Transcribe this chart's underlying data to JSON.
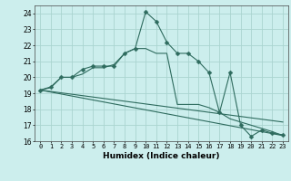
{
  "title": "",
  "xlabel": "Humidex (Indice chaleur)",
  "bg_color": "#cceeed",
  "grid_color": "#aad4d0",
  "line_color": "#2e6b5e",
  "xlim": [
    -0.5,
    23.5
  ],
  "ylim": [
    16,
    24.5
  ],
  "yticks": [
    16,
    17,
    18,
    19,
    20,
    21,
    22,
    23,
    24
  ],
  "xticks": [
    0,
    1,
    2,
    3,
    4,
    5,
    6,
    7,
    8,
    9,
    10,
    11,
    12,
    13,
    14,
    15,
    16,
    17,
    18,
    19,
    20,
    21,
    22,
    23
  ],
  "series": [
    {
      "x": [
        0,
        1,
        2,
        3,
        4,
        5,
        6,
        7,
        8,
        9,
        10,
        11,
        12,
        13,
        14,
        15,
        16,
        17,
        18,
        19,
        20,
        21,
        22,
        23
      ],
      "y": [
        19.2,
        19.4,
        20.0,
        20.0,
        20.5,
        20.7,
        20.7,
        20.7,
        21.5,
        21.8,
        24.1,
        23.5,
        22.2,
        21.5,
        21.5,
        21.0,
        20.3,
        17.8,
        20.3,
        17.0,
        16.3,
        16.7,
        16.5,
        16.4
      ],
      "has_marker": true,
      "markersize": 2.5
    },
    {
      "x": [
        0,
        1,
        2,
        3,
        4,
        5,
        6,
        7,
        8,
        9,
        10,
        11,
        12,
        13,
        14,
        15,
        16,
        17,
        18,
        19,
        20,
        21,
        22,
        23
      ],
      "y": [
        19.2,
        19.35,
        20.0,
        20.0,
        20.2,
        20.6,
        20.6,
        20.8,
        21.5,
        21.8,
        21.8,
        21.5,
        21.5,
        18.3,
        18.3,
        18.3,
        18.1,
        17.8,
        17.4,
        17.2,
        17.0,
        16.8,
        16.6,
        16.35
      ],
      "has_marker": false
    },
    {
      "x": [
        0,
        23
      ],
      "y": [
        19.2,
        16.35
      ],
      "has_marker": false
    },
    {
      "x": [
        0,
        23
      ],
      "y": [
        19.2,
        17.2
      ],
      "has_marker": false
    }
  ]
}
